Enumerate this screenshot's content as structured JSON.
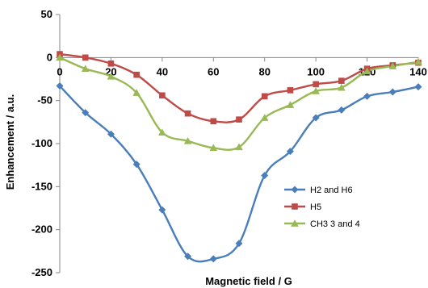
{
  "chart_data": {
    "type": "line",
    "title": "",
    "xlabel": "Magnetic field / G",
    "ylabel": "Enhancement / a.u.",
    "xlim": [
      0,
      140
    ],
    "ylim": [
      -250,
      50
    ],
    "xticks": [
      "0",
      "20",
      "40",
      "60",
      "80",
      "100",
      "120",
      "140"
    ],
    "yticks": [
      "50",
      "0",
      "-50",
      "-100",
      "-150",
      "-200",
      "-250"
    ],
    "grid": false,
    "smooth": true,
    "legend_position": "bottom-right",
    "x": [
      0,
      10,
      20,
      30,
      40,
      50,
      60,
      70,
      80,
      90,
      100,
      110,
      120,
      130,
      140
    ],
    "series": [
      {
        "name": "H2 and H6",
        "color": "#4a7ebb",
        "marker": "diamond",
        "values": [
          -33,
          -64,
          -89,
          -124,
          -177,
          -231,
          -234,
          -216,
          -137,
          -109,
          -70,
          -61,
          -45,
          -40,
          -34
        ]
      },
      {
        "name": "H5",
        "color": "#be4b48",
        "marker": "square",
        "values": [
          4,
          0,
          -7,
          -20,
          -44,
          -65,
          -74,
          -72,
          -45,
          -38,
          -31,
          -27,
          -13,
          -9,
          -6
        ]
      },
      {
        "name": "CH3 3 and 4",
        "color": "#98b954",
        "marker": "triangle",
        "values": [
          0,
          -13,
          -22,
          -41,
          -87,
          -97,
          -105,
          -104,
          -70,
          -55,
          -39,
          -35,
          -16,
          -10,
          -5
        ]
      }
    ]
  }
}
